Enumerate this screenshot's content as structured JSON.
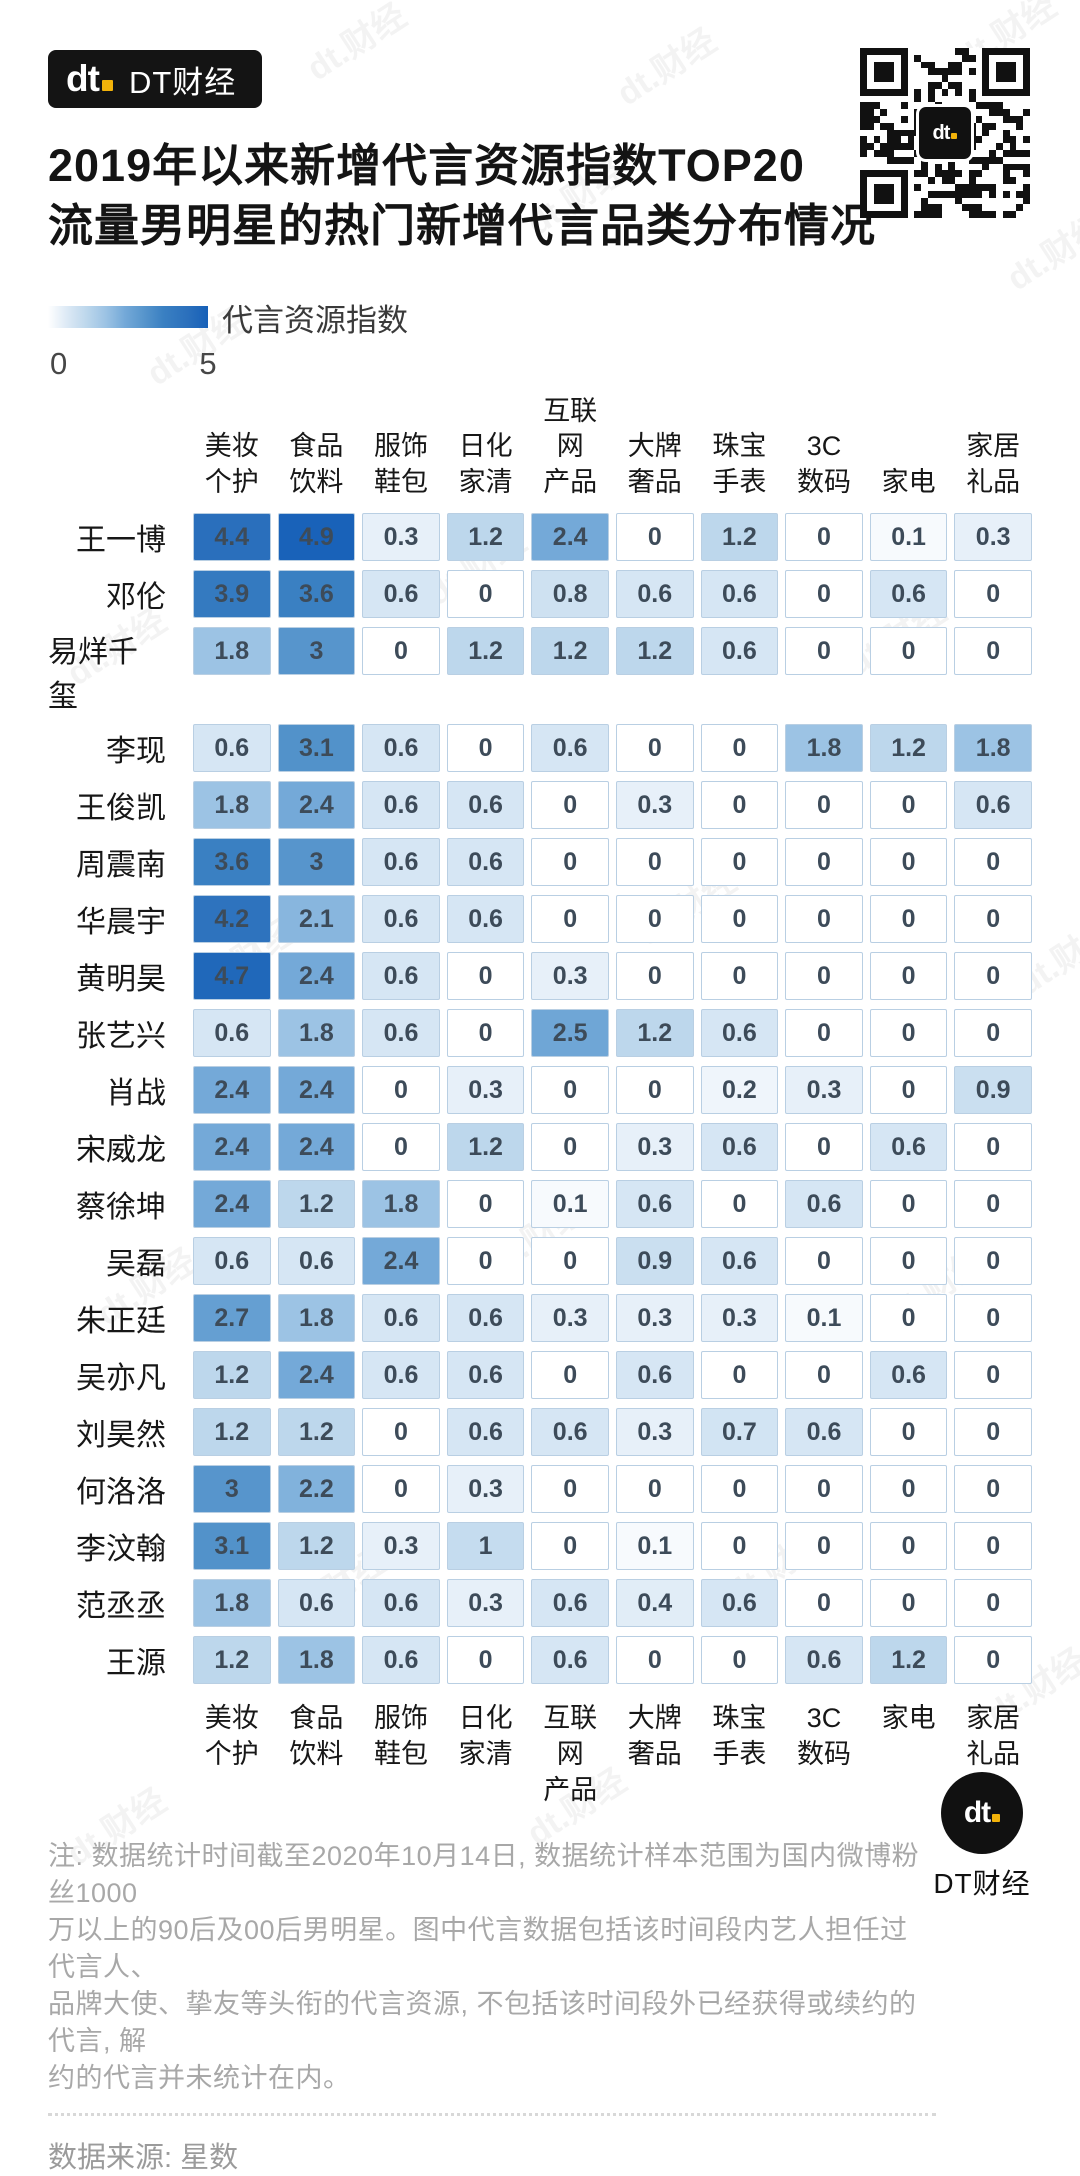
{
  "header": {
    "logo_mark_letters": "dt",
    "logo_mark_dot": ".",
    "logo_name": "DT财经",
    "title_line1": "2019年以来新增代言资源指数TOP20",
    "title_line2": "流量男明星的热门新增代言品类分布情况"
  },
  "legend": {
    "label": "代言资源指数",
    "min_label": "0",
    "max_label": "5"
  },
  "chart_data": {
    "type": "heatmap",
    "value_name": "代言资源指数",
    "scale": {
      "min": 0,
      "max": 5,
      "min_color": "#ffffff",
      "max_color": "#1660b8"
    },
    "columns": [
      [
        "美妆",
        "个护"
      ],
      [
        "食品",
        "饮料"
      ],
      [
        "服饰",
        "鞋包"
      ],
      [
        "日化",
        "家清"
      ],
      [
        "互联网",
        "产品"
      ],
      [
        "大牌",
        "奢品"
      ],
      [
        "珠宝",
        "手表"
      ],
      [
        "3C",
        "数码"
      ],
      [
        "家电"
      ],
      [
        "家居",
        "礼品"
      ]
    ],
    "rows": [
      {
        "name": "王一博",
        "values": [
          4.4,
          4.9,
          0.3,
          1.2,
          2.4,
          0,
          1.2,
          0,
          0.1,
          0.3
        ]
      },
      {
        "name": "邓伦",
        "values": [
          3.9,
          3.6,
          0.6,
          0,
          0.8,
          0.6,
          0.6,
          0,
          0.6,
          0
        ]
      },
      {
        "name": "易烊千玺",
        "values": [
          1.8,
          3,
          0,
          1.2,
          1.2,
          1.2,
          0.6,
          0,
          0,
          0
        ]
      },
      {
        "name": "李现",
        "values": [
          0.6,
          3.1,
          0.6,
          0,
          0.6,
          0,
          0,
          1.8,
          1.2,
          1.8
        ]
      },
      {
        "name": "王俊凯",
        "values": [
          1.8,
          2.4,
          0.6,
          0.6,
          0,
          0.3,
          0,
          0,
          0,
          0.6
        ]
      },
      {
        "name": "周震南",
        "values": [
          3.6,
          3,
          0.6,
          0.6,
          0,
          0,
          0,
          0,
          0,
          0
        ]
      },
      {
        "name": "华晨宇",
        "values": [
          4.2,
          2.1,
          0.6,
          0.6,
          0,
          0,
          0,
          0,
          0,
          0
        ]
      },
      {
        "name": "黄明昊",
        "values": [
          4.7,
          2.4,
          0.6,
          0,
          0.3,
          0,
          0,
          0,
          0,
          0
        ]
      },
      {
        "name": "张艺兴",
        "values": [
          0.6,
          1.8,
          0.6,
          0,
          2.5,
          1.2,
          0.6,
          0,
          0,
          0
        ]
      },
      {
        "name": "肖战",
        "values": [
          2.4,
          2.4,
          0,
          0.3,
          0,
          0,
          0.2,
          0.3,
          0,
          0.9
        ]
      },
      {
        "name": "宋威龙",
        "values": [
          2.4,
          2.4,
          0,
          1.2,
          0,
          0.3,
          0.6,
          0,
          0.6,
          0
        ]
      },
      {
        "name": "蔡徐坤",
        "values": [
          2.4,
          1.2,
          1.8,
          0,
          0.1,
          0.6,
          0,
          0.6,
          0,
          0
        ]
      },
      {
        "name": "吴磊",
        "values": [
          0.6,
          0.6,
          2.4,
          0,
          0,
          0.9,
          0.6,
          0,
          0,
          0
        ]
      },
      {
        "name": "朱正廷",
        "values": [
          2.7,
          1.8,
          0.6,
          0.6,
          0.3,
          0.3,
          0.3,
          0.1,
          0,
          0
        ]
      },
      {
        "name": "吴亦凡",
        "values": [
          1.2,
          2.4,
          0.6,
          0.6,
          0,
          0.6,
          0,
          0,
          0.6,
          0
        ]
      },
      {
        "name": "刘昊然",
        "values": [
          1.2,
          1.2,
          0,
          0.6,
          0.6,
          0.3,
          0.7,
          0.6,
          0,
          0
        ]
      },
      {
        "name": "何洛洛",
        "values": [
          3,
          2.2,
          0,
          0.3,
          0,
          0,
          0,
          0,
          0,
          0
        ]
      },
      {
        "name": "李汶翰",
        "values": [
          3.1,
          1.2,
          0.3,
          1,
          0,
          0.1,
          0,
          0,
          0,
          0
        ]
      },
      {
        "name": "范丞丞",
        "values": [
          1.8,
          0.6,
          0.6,
          0.3,
          0.6,
          0.4,
          0.6,
          0,
          0,
          0
        ]
      },
      {
        "name": "王源",
        "values": [
          1.2,
          1.8,
          0.6,
          0,
          0.6,
          0,
          0,
          0.6,
          1.2,
          0
        ]
      }
    ],
    "legend_position": "top-left",
    "grid": false
  },
  "footer": {
    "note_lines": [
      "注: 数据统计时间截至2020年10月14日, 数据统计样本范围为国内微博粉丝1000",
      "万以上的90后及00后男明星。图中代言数据包括该时间段内艺人担任过代言人、",
      "品牌大使、挚友等头衔的代言资源, 不包括该时间段外已经获得或续约的代言, 解",
      "约的代言并未统计在内。"
    ],
    "source": "数据来源: 星数",
    "logo_mark_letters": "dt",
    "logo_mark_dot": ".",
    "logo_name": "DT财经"
  },
  "decor": {
    "watermark_text": "dt.财经",
    "accent_yellow": "#f3b30a",
    "brand_black": "#141414"
  }
}
